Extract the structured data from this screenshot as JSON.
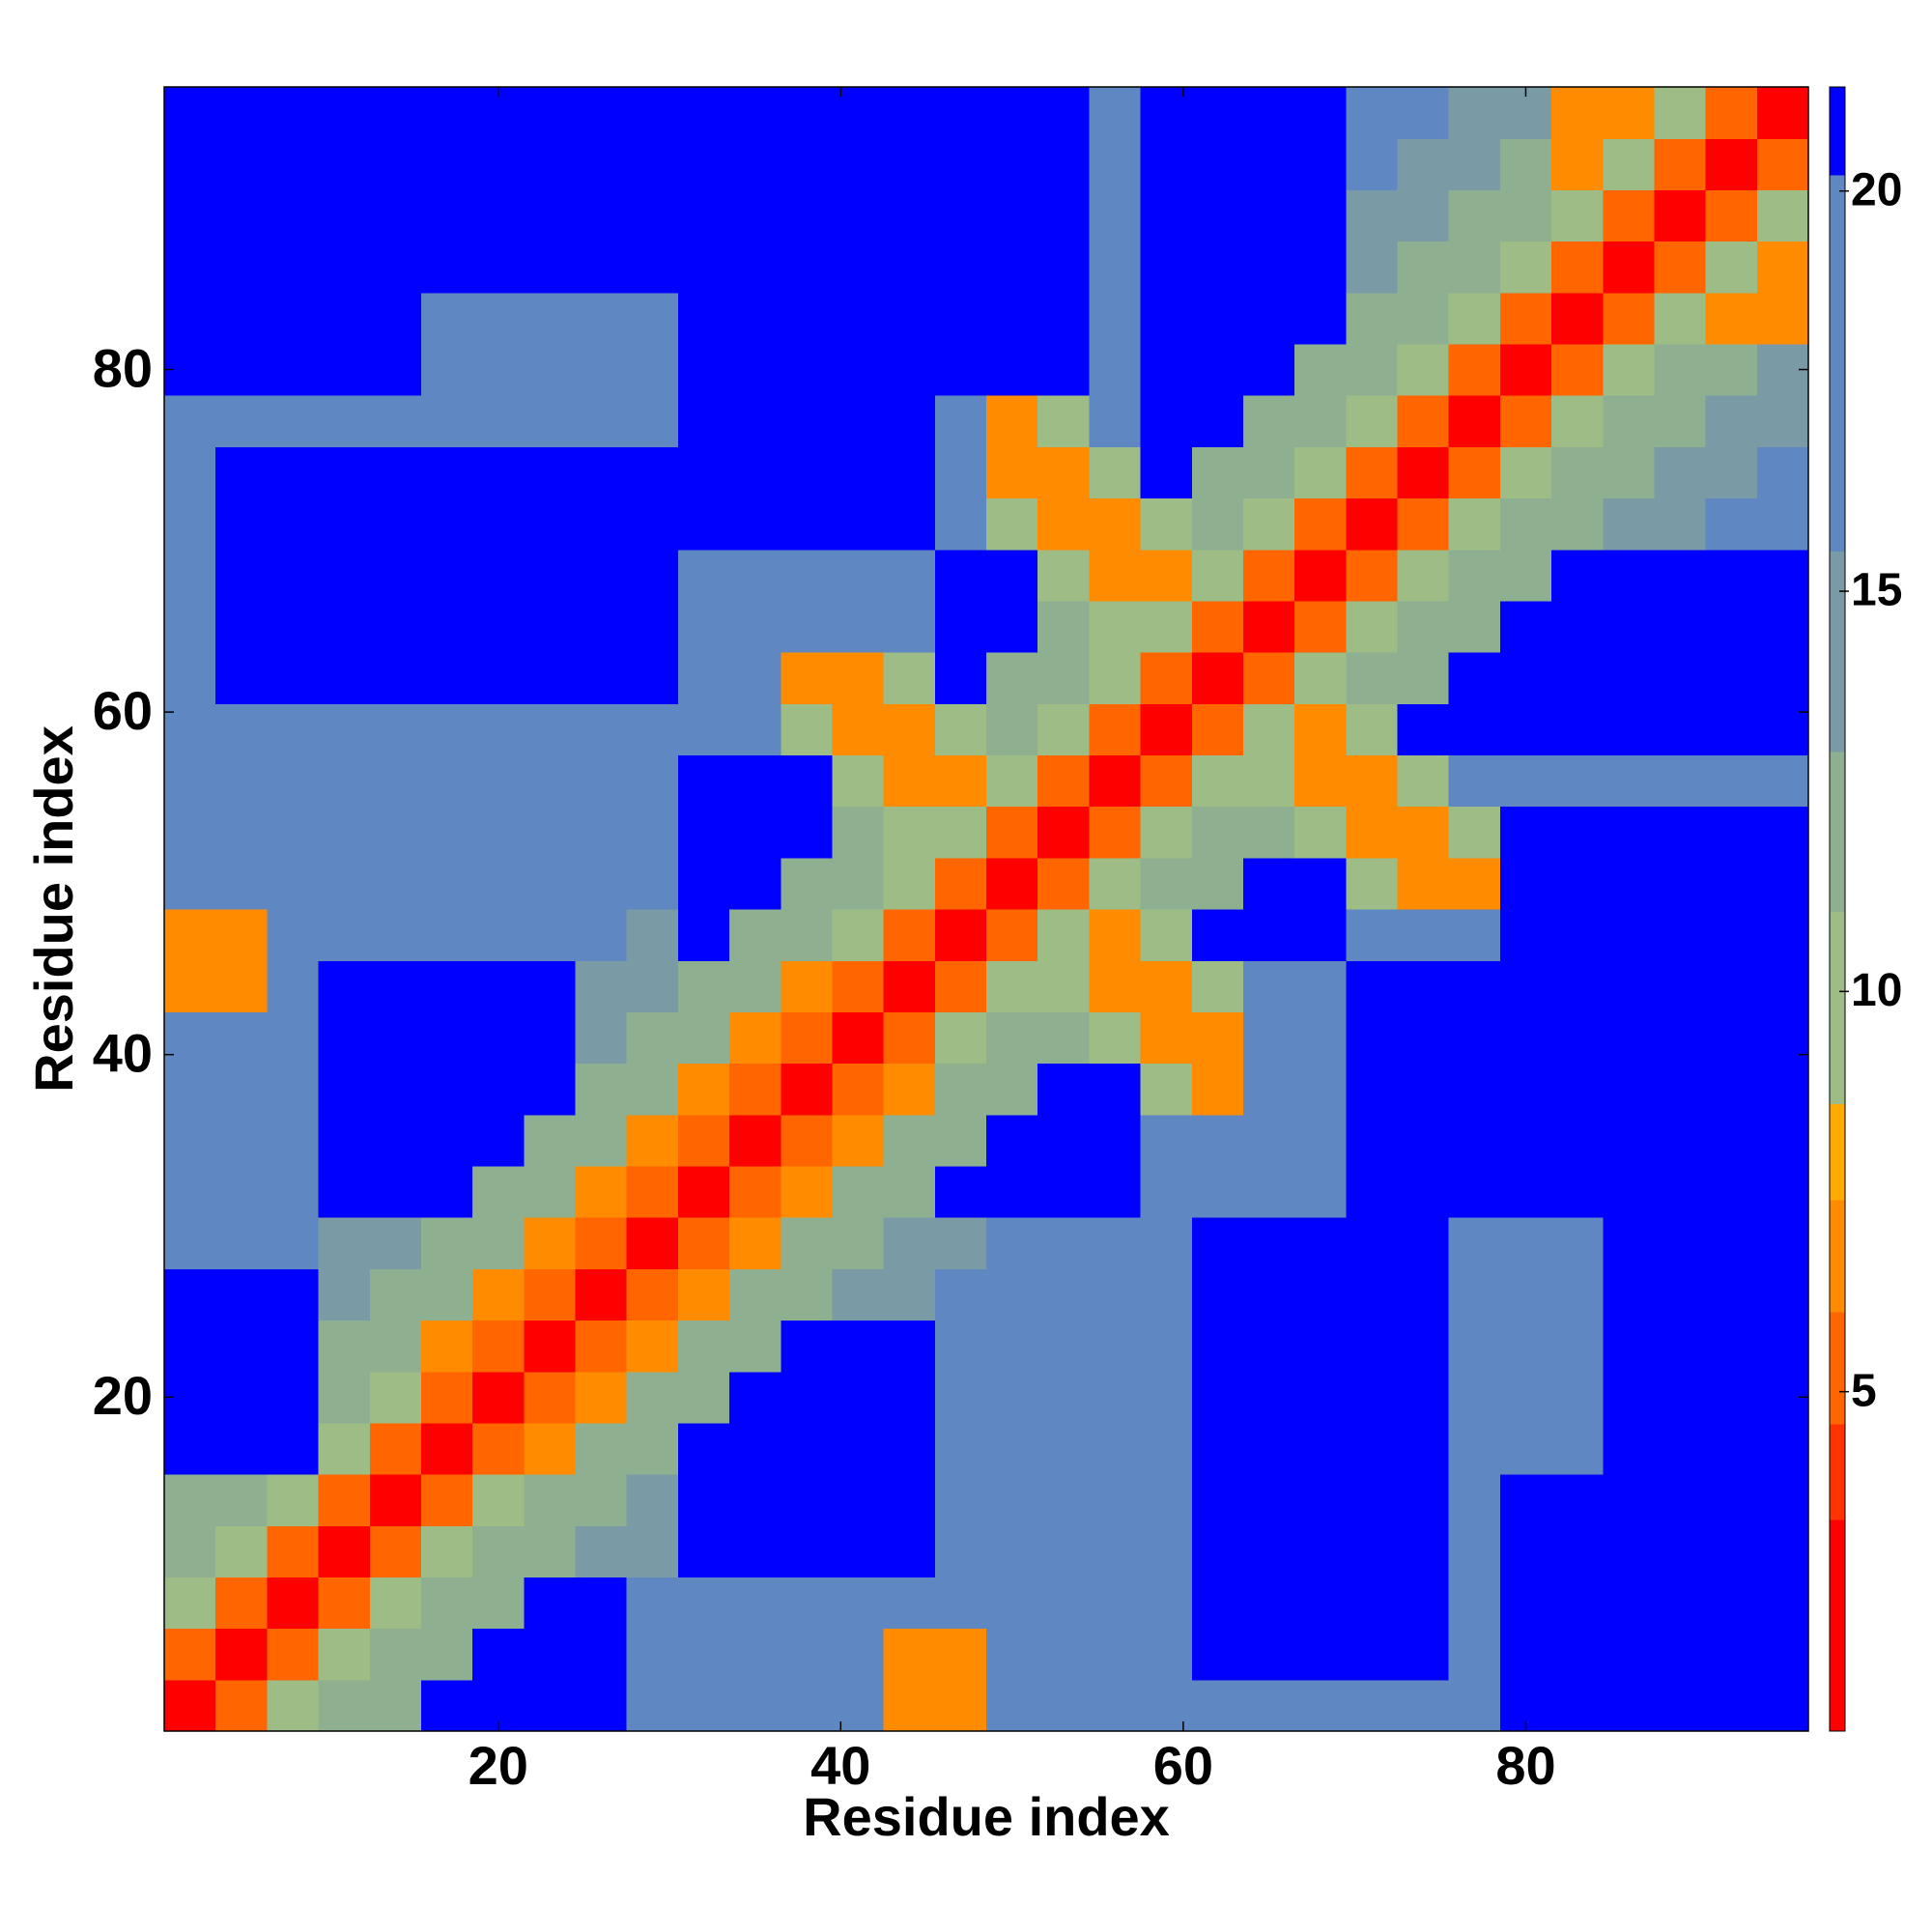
{
  "chart_data": {
    "type": "heatmap",
    "x_label": "Residue index",
    "y_label": "Residue index",
    "x": [
      2,
      5,
      8,
      11,
      14,
      17,
      20,
      23,
      26,
      29,
      32,
      35,
      38,
      41,
      44,
      47,
      50,
      53,
      56,
      59,
      62,
      65,
      68,
      71,
      74,
      77,
      80,
      83,
      86,
      89,
      92,
      95
    ],
    "y": [
      2,
      5,
      8,
      11,
      14,
      17,
      20,
      23,
      26,
      29,
      32,
      35,
      38,
      41,
      44,
      47,
      50,
      53,
      56,
      59,
      62,
      65,
      68,
      71,
      74,
      77,
      80,
      83,
      86,
      89,
      92,
      95
    ],
    "xlim": [
      0.5,
      96.5
    ],
    "ylim": [
      0.5,
      96.5
    ],
    "xticks": [
      20,
      40,
      60,
      80
    ],
    "yticks": [
      20,
      40,
      60,
      80
    ],
    "values": [
      [
        2,
        5,
        10,
        12,
        12,
        21,
        21,
        21,
        21,
        17,
        17,
        17,
        17,
        17,
        7,
        7,
        17,
        17,
        17,
        17,
        17,
        17,
        17,
        17,
        17,
        17,
        21,
        21,
        21,
        21,
        21,
        21
      ],
      [
        5,
        2,
        5,
        10,
        12,
        12,
        21,
        21,
        21,
        17,
        17,
        17,
        17,
        17,
        7,
        7,
        17,
        17,
        17,
        17,
        21,
        21,
        21,
        21,
        21,
        17,
        21,
        21,
        21,
        21,
        21,
        21
      ],
      [
        10,
        5,
        2,
        5,
        10,
        12,
        12,
        21,
        21,
        17,
        17,
        17,
        17,
        17,
        17,
        17,
        17,
        17,
        17,
        17,
        21,
        21,
        21,
        21,
        21,
        17,
        21,
        21,
        21,
        21,
        21,
        21
      ],
      [
        12,
        10,
        5,
        2,
        5,
        10,
        12,
        12,
        14,
        14,
        21,
        21,
        21,
        21,
        21,
        17,
        17,
        17,
        17,
        17,
        21,
        21,
        21,
        21,
        21,
        17,
        21,
        21,
        21,
        21,
        21,
        21
      ],
      [
        12,
        12,
        10,
        5,
        2,
        5,
        10,
        12,
        12,
        14,
        21,
        21,
        21,
        21,
        21,
        17,
        17,
        17,
        17,
        17,
        21,
        21,
        21,
        21,
        21,
        17,
        21,
        21,
        21,
        21,
        21,
        21
      ],
      [
        21,
        21,
        21,
        10,
        5,
        2,
        5,
        7,
        12,
        12,
        21,
        21,
        21,
        21,
        21,
        17,
        17,
        17,
        17,
        17,
        21,
        21,
        21,
        21,
        21,
        17,
        17,
        17,
        21,
        21,
        21,
        21
      ],
      [
        21,
        21,
        21,
        12,
        10,
        5,
        2,
        5,
        7,
        12,
        12,
        21,
        21,
        21,
        21,
        17,
        17,
        17,
        17,
        17,
        21,
        21,
        21,
        21,
        21,
        17,
        17,
        17,
        21,
        21,
        21,
        21
      ],
      [
        21,
        21,
        21,
        12,
        12,
        7,
        5,
        2,
        5,
        7,
        12,
        12,
        21,
        21,
        21,
        17,
        17,
        17,
        17,
        17,
        21,
        21,
        21,
        21,
        21,
        17,
        17,
        17,
        21,
        21,
        21,
        21
      ],
      [
        21,
        21,
        21,
        14,
        12,
        12,
        7,
        5,
        2,
        5,
        7,
        12,
        12,
        14,
        14,
        17,
        17,
        17,
        17,
        17,
        21,
        21,
        21,
        21,
        21,
        17,
        17,
        17,
        21,
        21,
        21,
        21
      ],
      [
        17,
        17,
        17,
        14,
        14,
        12,
        12,
        7,
        5,
        2,
        5,
        7,
        12,
        12,
        14,
        14,
        17,
        17,
        17,
        17,
        21,
        21,
        21,
        21,
        21,
        17,
        17,
        17,
        21,
        21,
        21,
        21
      ],
      [
        17,
        17,
        17,
        21,
        21,
        21,
        12,
        12,
        7,
        5,
        2,
        5,
        7,
        12,
        12,
        21,
        21,
        21,
        21,
        17,
        17,
        17,
        17,
        21,
        21,
        21,
        21,
        21,
        21,
        21,
        21,
        21
      ],
      [
        17,
        17,
        17,
        21,
        21,
        21,
        21,
        12,
        12,
        7,
        5,
        2,
        5,
        7,
        12,
        12,
        21,
        21,
        21,
        17,
        17,
        17,
        17,
        21,
        21,
        21,
        21,
        21,
        21,
        21,
        21,
        21
      ],
      [
        17,
        17,
        17,
        21,
        21,
        21,
        21,
        21,
        12,
        12,
        7,
        5,
        2,
        5,
        7,
        12,
        12,
        21,
        21,
        10,
        7,
        17,
        17,
        21,
        21,
        21,
        21,
        21,
        21,
        21,
        21,
        21
      ],
      [
        17,
        17,
        17,
        21,
        21,
        21,
        21,
        21,
        14,
        12,
        12,
        7,
        5,
        2,
        5,
        10,
        12,
        12,
        10,
        7,
        7,
        17,
        17,
        21,
        21,
        21,
        21,
        21,
        21,
        21,
        21,
        21
      ],
      [
        7,
        7,
        17,
        21,
        21,
        21,
        21,
        21,
        14,
        14,
        12,
        12,
        7,
        5,
        2,
        5,
        10,
        10,
        7,
        7,
        10,
        17,
        17,
        21,
        21,
        21,
        21,
        21,
        21,
        21,
        21,
        21
      ],
      [
        7,
        7,
        17,
        17,
        17,
        17,
        17,
        17,
        17,
        14,
        21,
        12,
        12,
        10,
        5,
        2,
        5,
        10,
        7,
        10,
        21,
        21,
        21,
        17,
        17,
        17,
        21,
        21,
        21,
        21,
        21,
        21
      ],
      [
        17,
        17,
        17,
        17,
        17,
        17,
        17,
        17,
        17,
        17,
        21,
        21,
        12,
        12,
        10,
        5,
        2,
        5,
        10,
        12,
        12,
        21,
        21,
        10,
        7,
        7,
        21,
        21,
        21,
        21,
        21,
        21
      ],
      [
        17,
        17,
        17,
        17,
        17,
        17,
        17,
        17,
        17,
        17,
        21,
        21,
        21,
        12,
        10,
        10,
        5,
        2,
        5,
        10,
        12,
        12,
        10,
        7,
        7,
        10,
        21,
        21,
        21,
        21,
        21,
        21
      ],
      [
        17,
        17,
        17,
        17,
        17,
        17,
        17,
        17,
        17,
        17,
        21,
        21,
        21,
        10,
        7,
        7,
        10,
        5,
        2,
        5,
        10,
        10,
        7,
        7,
        10,
        17,
        17,
        17,
        17,
        17,
        17,
        17
      ],
      [
        17,
        17,
        17,
        17,
        17,
        17,
        17,
        17,
        17,
        17,
        17,
        17,
        10,
        7,
        7,
        10,
        12,
        10,
        5,
        2,
        5,
        10,
        7,
        10,
        21,
        21,
        21,
        21,
        21,
        21,
        21,
        21
      ],
      [
        17,
        21,
        21,
        21,
        21,
        21,
        21,
        21,
        21,
        21,
        17,
        17,
        7,
        7,
        10,
        21,
        12,
        12,
        10,
        5,
        2,
        5,
        10,
        12,
        12,
        21,
        21,
        21,
        21,
        21,
        21,
        21
      ],
      [
        17,
        21,
        21,
        21,
        21,
        21,
        21,
        21,
        21,
        21,
        17,
        17,
        17,
        17,
        17,
        21,
        21,
        12,
        10,
        10,
        5,
        2,
        5,
        10,
        12,
        12,
        21,
        21,
        21,
        21,
        21,
        21
      ],
      [
        17,
        21,
        21,
        21,
        21,
        21,
        21,
        21,
        21,
        21,
        17,
        17,
        17,
        17,
        17,
        21,
        21,
        10,
        7,
        7,
        10,
        5,
        2,
        5,
        10,
        12,
        12,
        21,
        21,
        21,
        21,
        21
      ],
      [
        17,
        21,
        21,
        21,
        21,
        21,
        21,
        21,
        21,
        21,
        21,
        21,
        21,
        21,
        21,
        17,
        10,
        7,
        7,
        10,
        12,
        10,
        5,
        2,
        5,
        10,
        12,
        12,
        14,
        14,
        17,
        17
      ],
      [
        17,
        21,
        21,
        21,
        21,
        21,
        21,
        21,
        21,
        21,
        21,
        21,
        21,
        21,
        21,
        17,
        7,
        7,
        10,
        21,
        12,
        12,
        10,
        5,
        2,
        5,
        10,
        12,
        12,
        14,
        14,
        17
      ],
      [
        17,
        17,
        17,
        17,
        17,
        17,
        17,
        17,
        17,
        17,
        21,
        21,
        21,
        21,
        21,
        17,
        7,
        10,
        17,
        21,
        21,
        12,
        12,
        10,
        5,
        2,
        5,
        10,
        12,
        12,
        14,
        14
      ],
      [
        21,
        21,
        21,
        21,
        21,
        17,
        17,
        17,
        17,
        17,
        21,
        21,
        21,
        21,
        21,
        21,
        21,
        21,
        17,
        21,
        21,
        21,
        12,
        12,
        10,
        5,
        2,
        5,
        10,
        12,
        12,
        14
      ],
      [
        21,
        21,
        21,
        21,
        21,
        17,
        17,
        17,
        17,
        17,
        21,
        21,
        21,
        21,
        21,
        21,
        21,
        21,
        17,
        21,
        21,
        21,
        21,
        12,
        12,
        10,
        5,
        2,
        5,
        10,
        7,
        7
      ],
      [
        21,
        21,
        21,
        21,
        21,
        21,
        21,
        21,
        21,
        21,
        21,
        21,
        21,
        21,
        21,
        21,
        21,
        21,
        17,
        21,
        21,
        21,
        21,
        14,
        12,
        12,
        10,
        5,
        2,
        5,
        10,
        7
      ],
      [
        21,
        21,
        21,
        21,
        21,
        21,
        21,
        21,
        21,
        21,
        21,
        21,
        21,
        21,
        21,
        21,
        21,
        21,
        17,
        21,
        21,
        21,
        21,
        14,
        14,
        12,
        12,
        10,
        5,
        2,
        5,
        10
      ],
      [
        21,
        21,
        21,
        21,
        21,
        21,
        21,
        21,
        21,
        21,
        21,
        21,
        21,
        21,
        21,
        21,
        21,
        21,
        17,
        21,
        21,
        21,
        21,
        17,
        14,
        14,
        12,
        7,
        10,
        5,
        2,
        5
      ],
      [
        21,
        21,
        21,
        21,
        21,
        21,
        21,
        21,
        21,
        21,
        21,
        21,
        21,
        21,
        21,
        21,
        21,
        21,
        17,
        21,
        21,
        21,
        21,
        17,
        17,
        14,
        14,
        7,
        7,
        10,
        5,
        2
      ]
    ],
    "colorbar": {
      "zlim": [
        0.76,
        21.3
      ],
      "ticks": [
        5,
        10,
        15,
        20
      ],
      "scale": [
        {
          "max": 3.4,
          "color": "#ff0000"
        },
        {
          "max": 4.6,
          "color": "#ff3300"
        },
        {
          "max": 6,
          "color": "#ff6600"
        },
        {
          "max": 7.4,
          "color": "#ff8c00"
        },
        {
          "max": 8.6,
          "color": "#ffaa00"
        },
        {
          "max": 11,
          "color": "#9dbc86"
        },
        {
          "max": 13,
          "color": "#8eb091"
        },
        {
          "max": 15.5,
          "color": "#7a9aa6"
        },
        {
          "max": 20.2,
          "color": "#5f87c2"
        },
        {
          "max": 21.3,
          "color": "#0000ff"
        }
      ]
    }
  }
}
